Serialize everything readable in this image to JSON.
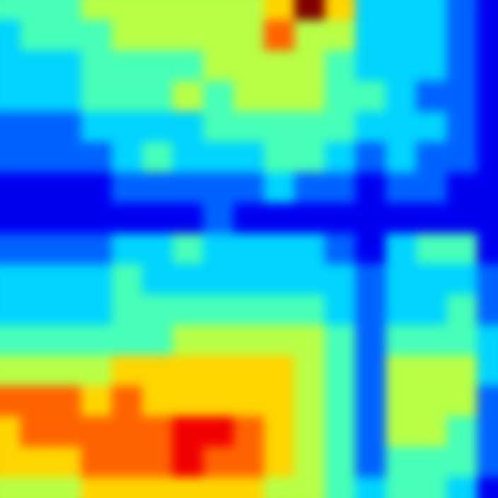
{
  "chart_data": {
    "type": "heatmap",
    "title": "",
    "xlabel": "",
    "ylabel": "",
    "colormap": "jet",
    "vmin": 0,
    "vmax": 9,
    "grid": false,
    "legend": "none",
    "values": [
      [
        4,
        4,
        4,
        5,
        5,
        5,
        5,
        5,
        5,
        6,
        9,
        6,
        3,
        3,
        3,
        2,
        1
      ],
      [
        3,
        4,
        4,
        4,
        5,
        5,
        5,
        5,
        5,
        7,
        5,
        5,
        3,
        3,
        3,
        2,
        1
      ],
      [
        3,
        3,
        3,
        4,
        4,
        4,
        4,
        5,
        5,
        5,
        5,
        4,
        3,
        3,
        3,
        2,
        1
      ],
      [
        3,
        3,
        3,
        4,
        4,
        4,
        5,
        4,
        5,
        5,
        5,
        4,
        4,
        3,
        2,
        2,
        1
      ],
      [
        2,
        2,
        2,
        3,
        3,
        3,
        3,
        4,
        4,
        4,
        4,
        4,
        3,
        3,
        3,
        2,
        1
      ],
      [
        2,
        2,
        2,
        2,
        3,
        4,
        3,
        3,
        3,
        4,
        4,
        3,
        2,
        3,
        2,
        2,
        1
      ],
      [
        1,
        1,
        1,
        1,
        2,
        2,
        2,
        2,
        2,
        3,
        2,
        2,
        1,
        2,
        2,
        1,
        1
      ],
      [
        1,
        1,
        1,
        1,
        1,
        1,
        1,
        2,
        1,
        1,
        1,
        1,
        1,
        1,
        1,
        1,
        1
      ],
      [
        2,
        2,
        2,
        2,
        3,
        3,
        4,
        3,
        3,
        3,
        3,
        2,
        1,
        3,
        4,
        4,
        1
      ],
      [
        3,
        3,
        3,
        3,
        4,
        3,
        3,
        3,
        3,
        3,
        3,
        3,
        2,
        3,
        3,
        3,
        2
      ],
      [
        3,
        3,
        3,
        3,
        4,
        4,
        4,
        4,
        4,
        4,
        4,
        3,
        2,
        3,
        3,
        4,
        2
      ],
      [
        4,
        4,
        4,
        4,
        4,
        4,
        5,
        5,
        5,
        5,
        5,
        4,
        2,
        4,
        4,
        4,
        3
      ],
      [
        5,
        5,
        5,
        5,
        6,
        6,
        6,
        6,
        6,
        6,
        5,
        4,
        2,
        5,
        5,
        5,
        3
      ],
      [
        7,
        7,
        7,
        6,
        7,
        6,
        6,
        6,
        6,
        6,
        5,
        4,
        2,
        5,
        5,
        5,
        2
      ],
      [
        6,
        7,
        7,
        7,
        7,
        7,
        8,
        8,
        7,
        6,
        5,
        4,
        2,
        5,
        5,
        4,
        2
      ],
      [
        6,
        6,
        6,
        7,
        7,
        7,
        8,
        7,
        7,
        6,
        5,
        4,
        2,
        4,
        4,
        4,
        2
      ],
      [
        5,
        5,
        5,
        6,
        6,
        6,
        6,
        6,
        6,
        5,
        5,
        4,
        3,
        4,
        4,
        3,
        1
      ]
    ]
  }
}
